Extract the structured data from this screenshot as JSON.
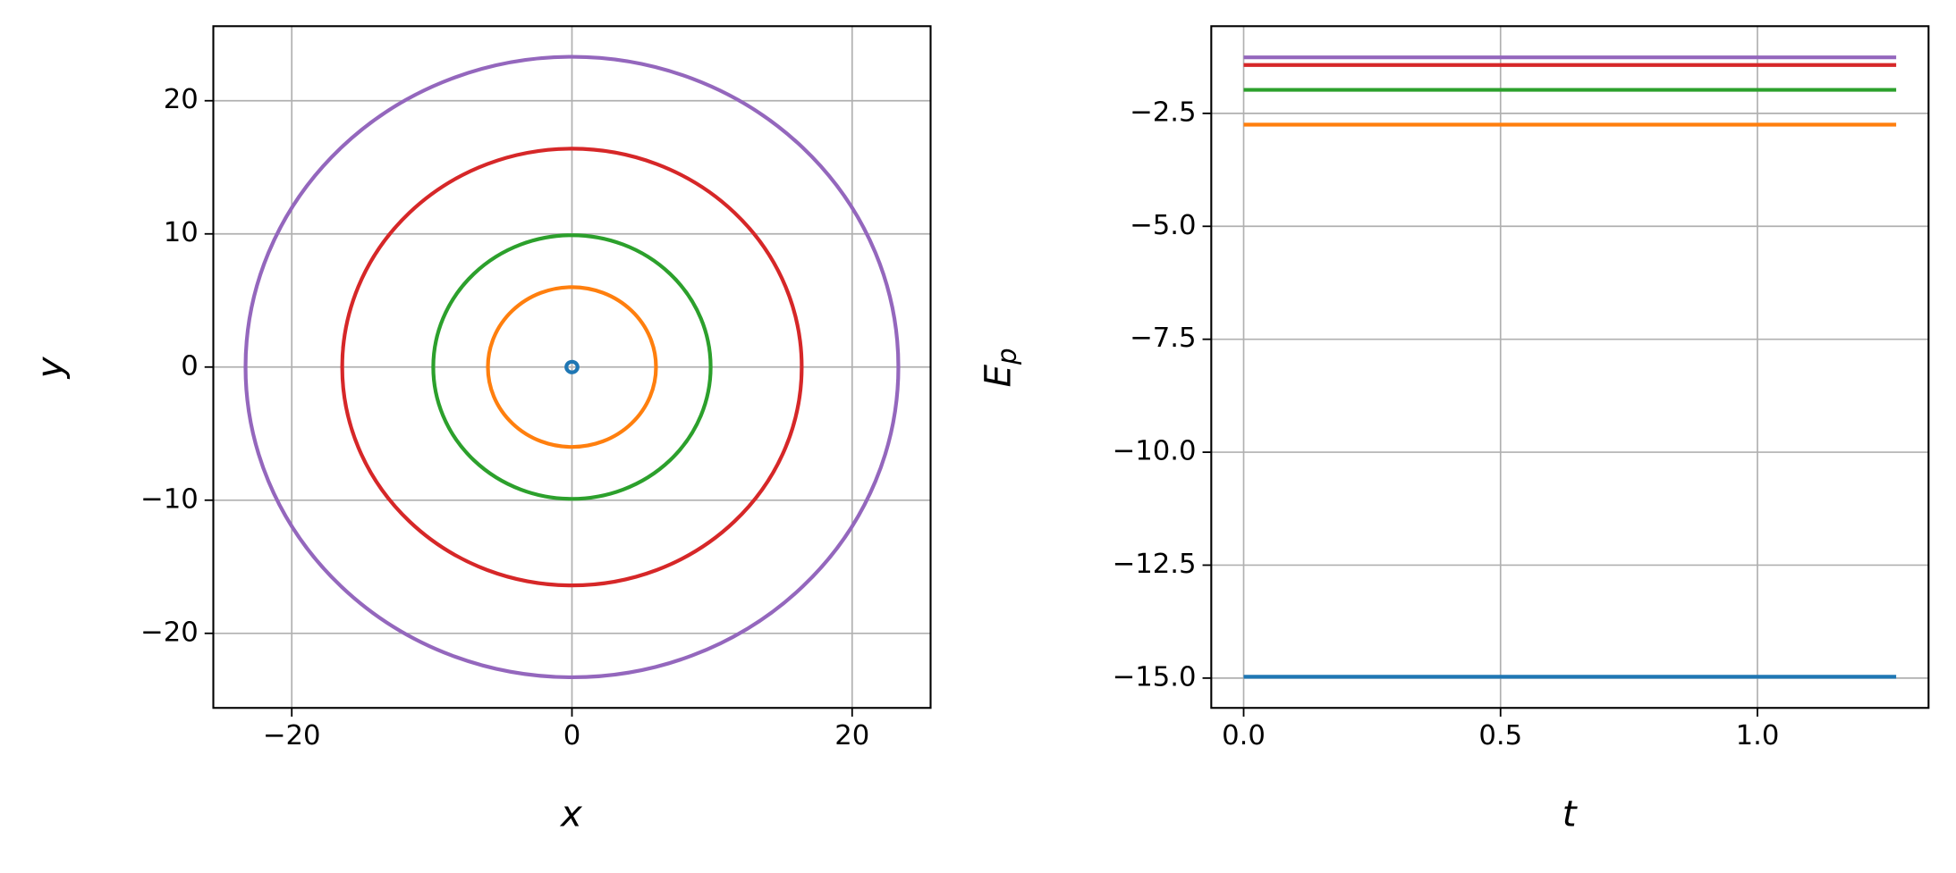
{
  "chart_data": [
    {
      "type": "orbit",
      "xlabel": "x",
      "ylabel": "y",
      "xlim": [
        -25.6,
        25.6
      ],
      "ylim": [
        -25.6,
        25.6
      ],
      "xticks": [
        {
          "value": -20,
          "label": "−20"
        },
        0,
        20
      ],
      "yticks": [
        {
          "value": -20,
          "label": "−20"
        },
        {
          "value": -10,
          "label": "−10"
        },
        0,
        10,
        20
      ],
      "grid": true,
      "series": [
        {
          "color": "#1f77b4",
          "center": [
            0,
            0
          ],
          "radius": 0.4
        },
        {
          "color": "#ff7f0e",
          "center": [
            0,
            0
          ],
          "radius": 6.0
        },
        {
          "color": "#2ca02c",
          "center": [
            0,
            0
          ],
          "radius": 9.9
        },
        {
          "color": "#d62728",
          "center": [
            0,
            0
          ],
          "radius": 16.4
        },
        {
          "color": "#9467bd",
          "center": [
            0,
            0
          ],
          "radius": 23.3
        }
      ]
    },
    {
      "type": "line",
      "xlabel": "t",
      "ylabel": [
        "E",
        "p"
      ],
      "xlim": [
        -0.063,
        1.333
      ],
      "ylim": [
        -15.66,
        -0.57
      ],
      "xticks": [
        {
          "value": 0,
          "label": "0.0"
        },
        0.5,
        {
          "value": 1,
          "label": "1.0"
        }
      ],
      "yticks": [
        {
          "value": -15,
          "label": "−15.0"
        },
        {
          "value": -12.5,
          "label": "−12.5"
        },
        {
          "value": -10,
          "label": "−10.0"
        },
        {
          "value": -7.5,
          "label": "−7.5"
        },
        {
          "value": -5,
          "label": "−5.0"
        },
        {
          "value": -2.5,
          "label": "−2.5"
        }
      ],
      "grid": true,
      "x": [
        0,
        1.27
      ],
      "series": [
        {
          "color": "#1f77b4",
          "values": [
            -14.97,
            -14.97
          ]
        },
        {
          "color": "#ff7f0e",
          "values": [
            -2.75,
            -2.75
          ]
        },
        {
          "color": "#2ca02c",
          "values": [
            -1.98,
            -1.98
          ]
        },
        {
          "color": "#d62728",
          "values": [
            -1.43,
            -1.43
          ]
        },
        {
          "color": "#9467bd",
          "values": [
            -1.26,
            -1.26
          ]
        }
      ]
    }
  ]
}
